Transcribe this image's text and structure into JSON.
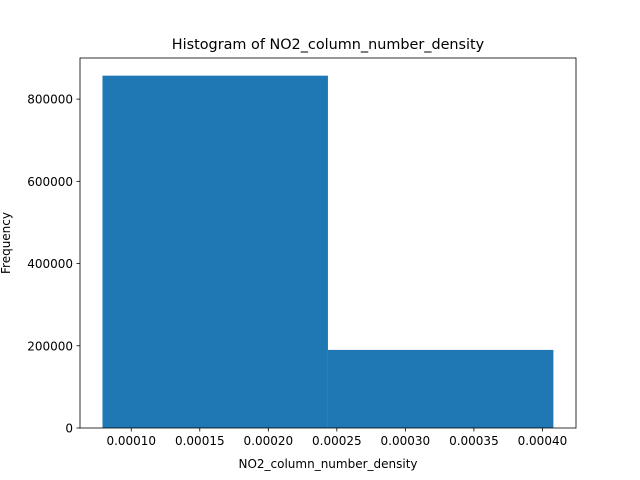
{
  "chart_data": {
    "type": "bar",
    "title": "Histogram of NO2_column_number_density",
    "xlabel": "NO2_column_number_density",
    "ylabel": "Frequency",
    "bins": [
      {
        "x0": 7.9e-05,
        "x1": 0.0002435,
        "count": 857000
      },
      {
        "x0": 0.0002435,
        "x1": 0.000408,
        "count": 190000
      }
    ],
    "xlim": [
      6.26e-05,
      0.0004245
    ],
    "ylim": [
      0,
      900000
    ],
    "xticks": [
      0.0001,
      0.00015,
      0.0002,
      0.00025,
      0.0003,
      0.00035,
      0.0004
    ],
    "xtick_labels": [
      "0.00010",
      "0.00015",
      "0.00020",
      "0.00025",
      "0.00030",
      "0.00035",
      "0.00040"
    ],
    "yticks": [
      0,
      200000,
      400000,
      600000,
      800000
    ],
    "ytick_labels": [
      "0",
      "200000",
      "400000",
      "600000",
      "800000"
    ],
    "bar_color": "#1f77b4",
    "grid": false,
    "legend": "none"
  }
}
